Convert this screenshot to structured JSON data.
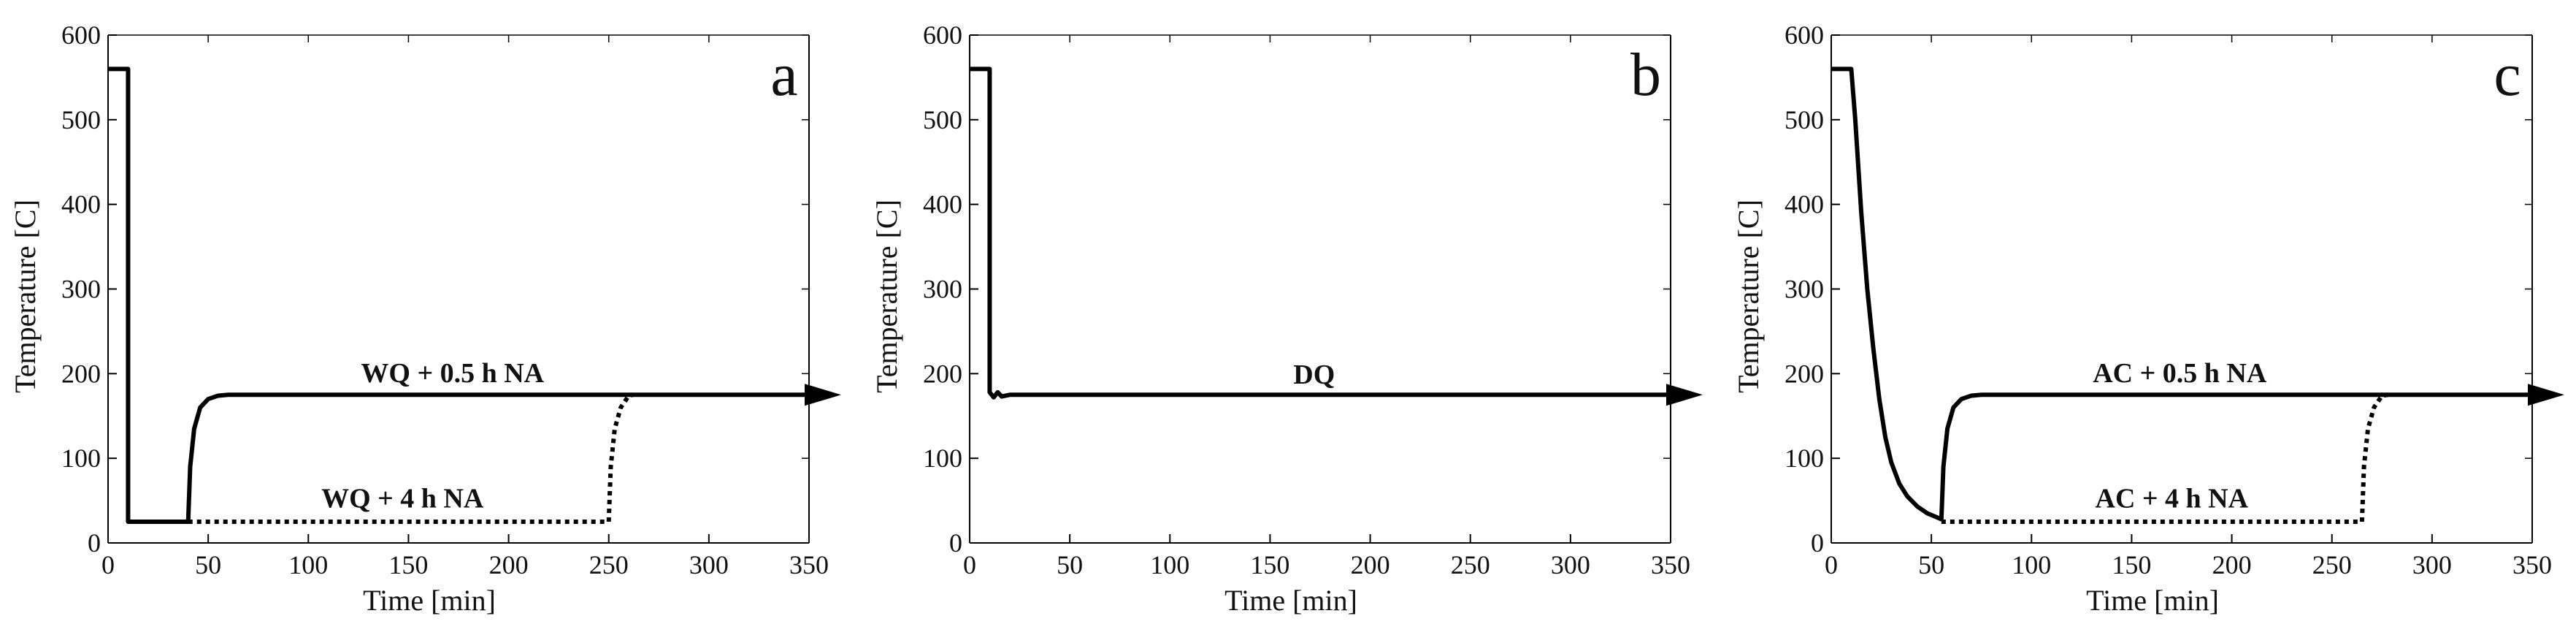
{
  "figure": {
    "panels": [
      "a",
      "b",
      "c"
    ]
  },
  "chart_data": [
    {
      "type": "line",
      "panel_label": "a",
      "xlabel": "Time [min]",
      "ylabel": "Temperature [C]",
      "xlim": [
        0,
        350
      ],
      "ylim": [
        0,
        600
      ],
      "xticks": [
        0,
        50,
        100,
        150,
        200,
        250,
        300,
        350
      ],
      "yticks": [
        0,
        100,
        200,
        300,
        400,
        500,
        600
      ],
      "grid": false,
      "arrow_end": true,
      "series": [
        {
          "name": "WQ + 0.5 h NA",
          "style": "solid",
          "points": [
            [
              0,
              560
            ],
            [
              10,
              560
            ],
            [
              10,
              25
            ],
            [
              40,
              25
            ],
            [
              41,
              90
            ],
            [
              43,
              135
            ],
            [
              46,
              160
            ],
            [
              50,
              170
            ],
            [
              55,
              174
            ],
            [
              60,
              175
            ],
            [
              350,
              175
            ]
          ]
        },
        {
          "name": "WQ + 4 h NA",
          "style": "dotted",
          "points": [
            [
              40,
              25
            ],
            [
              250,
              25
            ],
            [
              251,
              90
            ],
            [
              253,
              135
            ],
            [
              256,
              160
            ],
            [
              260,
              174
            ],
            [
              262,
              175
            ]
          ]
        }
      ],
      "annotations": [
        {
          "text": "WQ + 0.5 h NA",
          "x": 172,
          "y": 190
        },
        {
          "text": "WQ + 4 h NA",
          "x": 147,
          "y": 42
        }
      ]
    },
    {
      "type": "line",
      "panel_label": "b",
      "xlabel": "Time [min]",
      "ylabel": "Temperature [C]",
      "xlim": [
        0,
        350
      ],
      "ylim": [
        0,
        600
      ],
      "xticks": [
        0,
        50,
        100,
        150,
        200,
        250,
        300,
        350
      ],
      "yticks": [
        0,
        100,
        200,
        300,
        400,
        500,
        600
      ],
      "grid": false,
      "arrow_end": true,
      "series": [
        {
          "name": "DQ",
          "style": "solid",
          "points": [
            [
              0,
              560
            ],
            [
              10,
              560
            ],
            [
              10,
              178
            ],
            [
              12,
              172
            ],
            [
              14,
              178
            ],
            [
              16,
              173
            ],
            [
              20,
              175
            ],
            [
              350,
              175
            ]
          ]
        }
      ],
      "annotations": [
        {
          "text": "DQ",
          "x": 172,
          "y": 188
        }
      ]
    },
    {
      "type": "line",
      "panel_label": "c",
      "xlabel": "Time [min]",
      "ylabel": "Temperature [C]",
      "xlim": [
        0,
        350
      ],
      "ylim": [
        0,
        600
      ],
      "xticks": [
        0,
        50,
        100,
        150,
        200,
        250,
        300,
        350
      ],
      "yticks": [
        0,
        100,
        200,
        300,
        400,
        500,
        600
      ],
      "grid": false,
      "arrow_end": true,
      "series": [
        {
          "name": "AC + 0.5 h NA",
          "style": "solid",
          "points": [
            [
              0,
              560
            ],
            [
              10,
              560
            ],
            [
              12,
              500
            ],
            [
              15,
              390
            ],
            [
              18,
              300
            ],
            [
              21,
              230
            ],
            [
              24,
              170
            ],
            [
              27,
              125
            ],
            [
              30,
              95
            ],
            [
              34,
              70
            ],
            [
              38,
              55
            ],
            [
              43,
              43
            ],
            [
              48,
              35
            ],
            [
              53,
              30
            ],
            [
              55,
              28
            ],
            [
              56,
              90
            ],
            [
              58,
              135
            ],
            [
              61,
              160
            ],
            [
              65,
              170
            ],
            [
              70,
              174
            ],
            [
              75,
              175
            ],
            [
              350,
              175
            ]
          ]
        },
        {
          "name": "AC + 4 h NA",
          "style": "dotted",
          "points": [
            [
              55,
              25
            ],
            [
              265,
              25
            ],
            [
              266,
              90
            ],
            [
              268,
              135
            ],
            [
              271,
              160
            ],
            [
              275,
              174
            ],
            [
              278,
              175
            ]
          ]
        }
      ],
      "annotations": [
        {
          "text": "AC + 0.5 h NA",
          "x": 174,
          "y": 190
        },
        {
          "text": "AC + 4 h NA",
          "x": 170,
          "y": 42
        }
      ]
    }
  ]
}
